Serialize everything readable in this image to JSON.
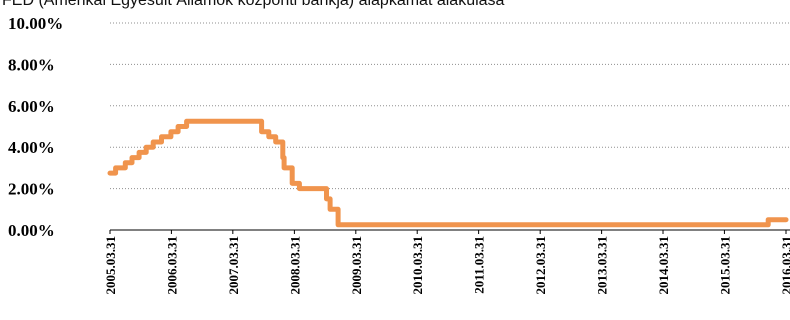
{
  "chart_data": {
    "type": "line",
    "title": "FED (Amerikai Egyesült Államok központi bankja) alapkamat alakulása",
    "xlabel": "",
    "ylabel": "",
    "ylim": [
      0,
      10
    ],
    "y_ticks": [
      "0.00%",
      "2.00%",
      "4.00%",
      "6.00%",
      "8.00%",
      "10.00%"
    ],
    "y_tick_values": [
      0,
      2,
      4,
      6,
      8,
      10
    ],
    "x_ticks": [
      "2005.03.31",
      "2006.03.31",
      "2007.03.31",
      "2008.03.31",
      "2009.03.31",
      "2010.03.31",
      "2011.03.31",
      "2012.03.31",
      "2013.03.31",
      "2014.03.31",
      "2015.03.31",
      "2016.03.31"
    ],
    "xlim": [
      "2005.03.31",
      "2016.03.31"
    ],
    "grid": true,
    "series_color": "#f0944d",
    "series": [
      {
        "x": [
          "2005.03.31",
          "2005.05.03",
          "2005.06.30",
          "2005.08.09",
          "2005.09.20",
          "2005.11.01",
          "2005.12.13",
          "2006.01.31",
          "2006.03.28",
          "2006.05.10",
          "2006.06.29",
          "2007.09.18",
          "2007.10.31",
          "2007.12.11",
          "2008.01.22",
          "2008.01.30",
          "2008.03.18",
          "2008.04.30",
          "2008.10.08",
          "2008.10.29",
          "2008.12.16",
          "2015.12.16",
          "2016.03.31"
        ],
        "values": [
          2.75,
          3.0,
          3.25,
          3.5,
          3.75,
          4.0,
          4.25,
          4.5,
          4.75,
          5.0,
          5.25,
          4.75,
          4.5,
          4.25,
          3.5,
          3.0,
          2.25,
          2.0,
          1.5,
          1.0,
          0.25,
          0.5,
          0.5
        ]
      }
    ]
  }
}
